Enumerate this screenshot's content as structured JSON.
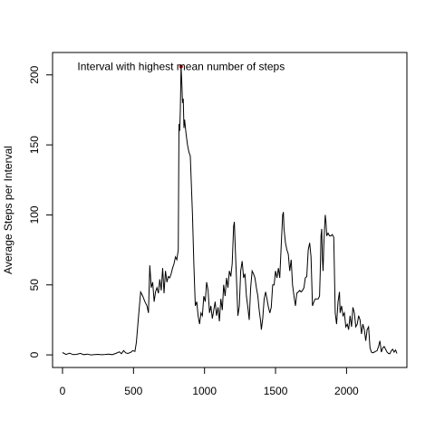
{
  "chart_data": {
    "type": "line",
    "title": "",
    "xlabel": "",
    "ylabel": "Average Steps per Interval",
    "xlim": [
      -70,
      2425
    ],
    "ylim": [
      -9,
      216
    ],
    "x_ticks": [
      0,
      500,
      1000,
      1500,
      2000
    ],
    "y_ticks": [
      0,
      50,
      100,
      150,
      200
    ],
    "grid": false,
    "line_color": "#000000",
    "series": [
      {
        "points": [
          [
            0,
            1.7
          ],
          [
            25,
            0.3
          ],
          [
            50,
            1.2
          ],
          [
            75,
            0.2
          ],
          [
            100,
            0.4
          ],
          [
            125,
            1.1
          ],
          [
            150,
            0.2
          ],
          [
            175,
            0.6
          ],
          [
            200,
            0.0
          ],
          [
            225,
            0.2
          ],
          [
            250,
            0.4
          ],
          [
            275,
            0.1
          ],
          [
            300,
            0.3
          ],
          [
            325,
            0.6
          ],
          [
            350,
            0.2
          ],
          [
            375,
            1.0
          ],
          [
            400,
            2.2
          ],
          [
            415,
            0.8
          ],
          [
            430,
            3.1
          ],
          [
            445,
            1.5
          ],
          [
            460,
            1.0
          ],
          [
            480,
            1.8
          ],
          [
            495,
            3.0
          ],
          [
            510,
            2.5
          ],
          [
            520,
            9.0
          ],
          [
            535,
            27.0
          ],
          [
            550,
            45.0
          ],
          [
            565,
            42.0
          ],
          [
            580,
            38.0
          ],
          [
            595,
            35.0
          ],
          [
            605,
            30.0
          ],
          [
            615,
            64.0
          ],
          [
            625,
            48.0
          ],
          [
            635,
            52.0
          ],
          [
            645,
            38.0
          ],
          [
            655,
            45.0
          ],
          [
            665,
            48.0
          ],
          [
            675,
            44.0
          ],
          [
            685,
            54.0
          ],
          [
            695,
            46.0
          ],
          [
            705,
            62.0
          ],
          [
            715,
            44.0
          ],
          [
            725,
            60.0
          ],
          [
            735,
            52.0
          ],
          [
            745,
            56.0
          ],
          [
            755,
            55.0
          ],
          [
            765,
            58.0
          ],
          [
            775,
            62.0
          ],
          [
            785,
            65.0
          ],
          [
            795,
            70.0
          ],
          [
            805,
            68.0
          ],
          [
            815,
            75.0
          ],
          [
            820,
            165.0
          ],
          [
            825,
            160.0
          ],
          [
            830,
            175.0
          ],
          [
            835,
            206.0
          ],
          [
            840,
            195.0
          ],
          [
            845,
            180.0
          ],
          [
            850,
            183.0
          ],
          [
            855,
            162.0
          ],
          [
            860,
            168.0
          ],
          [
            870,
            158.0
          ],
          [
            880,
            150.0
          ],
          [
            890,
            145.0
          ],
          [
            900,
            142.0
          ],
          [
            915,
            100.0
          ],
          [
            925,
            65.0
          ],
          [
            935,
            35.0
          ],
          [
            945,
            38.0
          ],
          [
            955,
            28.0
          ],
          [
            965,
            22.0
          ],
          [
            975,
            30.0
          ],
          [
            985,
            28.0
          ],
          [
            995,
            42.0
          ],
          [
            1005,
            38.0
          ],
          [
            1015,
            52.0
          ],
          [
            1025,
            46.0
          ],
          [
            1035,
            30.0
          ],
          [
            1045,
            35.0
          ],
          [
            1055,
            26.0
          ],
          [
            1065,
            32.0
          ],
          [
            1075,
            38.0
          ],
          [
            1085,
            28.0
          ],
          [
            1095,
            34.0
          ],
          [
            1105,
            24.0
          ],
          [
            1115,
            40.0
          ],
          [
            1125,
            32.0
          ],
          [
            1135,
            50.0
          ],
          [
            1145,
            42.0
          ],
          [
            1155,
            55.0
          ],
          [
            1165,
            48.0
          ],
          [
            1175,
            60.0
          ],
          [
            1185,
            56.0
          ],
          [
            1195,
            65.0
          ],
          [
            1205,
            92.0
          ],
          [
            1210,
            95.0
          ],
          [
            1215,
            80.0
          ],
          [
            1225,
            55.0
          ],
          [
            1235,
            28.0
          ],
          [
            1245,
            35.0
          ],
          [
            1255,
            60.0
          ],
          [
            1265,
            67.0
          ],
          [
            1275,
            55.0
          ],
          [
            1285,
            58.0
          ],
          [
            1295,
            42.0
          ],
          [
            1305,
            34.0
          ],
          [
            1315,
            25.0
          ],
          [
            1325,
            48.0
          ],
          [
            1335,
            60.0
          ],
          [
            1345,
            58.0
          ],
          [
            1355,
            55.0
          ],
          [
            1365,
            48.0
          ],
          [
            1375,
            42.0
          ],
          [
            1385,
            32.0
          ],
          [
            1395,
            24.0
          ],
          [
            1400,
            18.0
          ],
          [
            1410,
            26.0
          ],
          [
            1420,
            40.0
          ],
          [
            1430,
            45.0
          ],
          [
            1440,
            40.0
          ],
          [
            1450,
            34.0
          ],
          [
            1460,
            30.0
          ],
          [
            1470,
            34.0
          ],
          [
            1480,
            50.0
          ],
          [
            1490,
            50.0
          ],
          [
            1500,
            60.0
          ],
          [
            1510,
            55.0
          ],
          [
            1520,
            62.0
          ],
          [
            1530,
            55.0
          ],
          [
            1540,
            78.0
          ],
          [
            1550,
            100.0
          ],
          [
            1555,
            102.0
          ],
          [
            1560,
            90.0
          ],
          [
            1570,
            80.0
          ],
          [
            1580,
            75.0
          ],
          [
            1590,
            72.0
          ],
          [
            1600,
            60.0
          ],
          [
            1610,
            68.0
          ],
          [
            1620,
            50.0
          ],
          [
            1630,
            42.0
          ],
          [
            1640,
            35.0
          ],
          [
            1650,
            44.0
          ],
          [
            1660,
            45.0
          ],
          [
            1670,
            46.0
          ],
          [
            1680,
            45.0
          ],
          [
            1690,
            46.0
          ],
          [
            1700,
            48.0
          ],
          [
            1710,
            55.0
          ],
          [
            1720,
            56.0
          ],
          [
            1730,
            75.0
          ],
          [
            1740,
            80.0
          ],
          [
            1750,
            70.0
          ],
          [
            1760,
            35.0
          ],
          [
            1770,
            38.0
          ],
          [
            1780,
            40.0
          ],
          [
            1790,
            40.0
          ],
          [
            1800,
            40.0
          ],
          [
            1810,
            42.0
          ],
          [
            1815,
            60.0
          ],
          [
            1820,
            85.0
          ],
          [
            1825,
            90.0
          ],
          [
            1830,
            68.0
          ],
          [
            1835,
            60.0
          ],
          [
            1840,
            78.0
          ],
          [
            1845,
            90.0
          ],
          [
            1850,
            100.0
          ],
          [
            1855,
            95.0
          ],
          [
            1860,
            85.0
          ],
          [
            1870,
            87.0
          ],
          [
            1880,
            85.0
          ],
          [
            1890,
            85.0
          ],
          [
            1900,
            86.0
          ],
          [
            1910,
            84.0
          ],
          [
            1920,
            30.0
          ],
          [
            1930,
            22.0
          ],
          [
            1940,
            38.0
          ],
          [
            1950,
            45.0
          ],
          [
            1955,
            30.0
          ],
          [
            1965,
            35.0
          ],
          [
            1975,
            28.0
          ],
          [
            1985,
            30.0
          ],
          [
            1995,
            20.0
          ],
          [
            2005,
            22.0
          ],
          [
            2015,
            18.0
          ],
          [
            2025,
            28.0
          ],
          [
            2035,
            20.0
          ],
          [
            2045,
            34.0
          ],
          [
            2055,
            30.0
          ],
          [
            2065,
            20.0
          ],
          [
            2075,
            22.0
          ],
          [
            2085,
            28.0
          ],
          [
            2095,
            25.0
          ],
          [
            2105,
            15.0
          ],
          [
            2115,
            22.0
          ],
          [
            2125,
            18.0
          ],
          [
            2135,
            10.0
          ],
          [
            2145,
            18.0
          ],
          [
            2155,
            20.0
          ],
          [
            2165,
            5.0
          ],
          [
            2175,
            2.0
          ],
          [
            2185,
            1.5
          ],
          [
            2195,
            2.0
          ],
          [
            2205,
            2.5
          ],
          [
            2215,
            3.0
          ],
          [
            2225,
            6.0
          ],
          [
            2235,
            10.0
          ],
          [
            2245,
            2.0
          ],
          [
            2255,
            5.0
          ],
          [
            2265,
            6.0
          ],
          [
            2275,
            4.0
          ],
          [
            2285,
            2.0
          ],
          [
            2295,
            1.0
          ],
          [
            2305,
            0.8
          ],
          [
            2315,
            3.0
          ],
          [
            2325,
            4.0
          ],
          [
            2335,
            2.0
          ],
          [
            2345,
            3.5
          ],
          [
            2355,
            1.0
          ]
        ]
      }
    ],
    "annotations": [
      {
        "text": "Interval with highest mean number of steps",
        "x": 835,
        "y": 206,
        "marker_color": "#cc0000"
      }
    ]
  }
}
